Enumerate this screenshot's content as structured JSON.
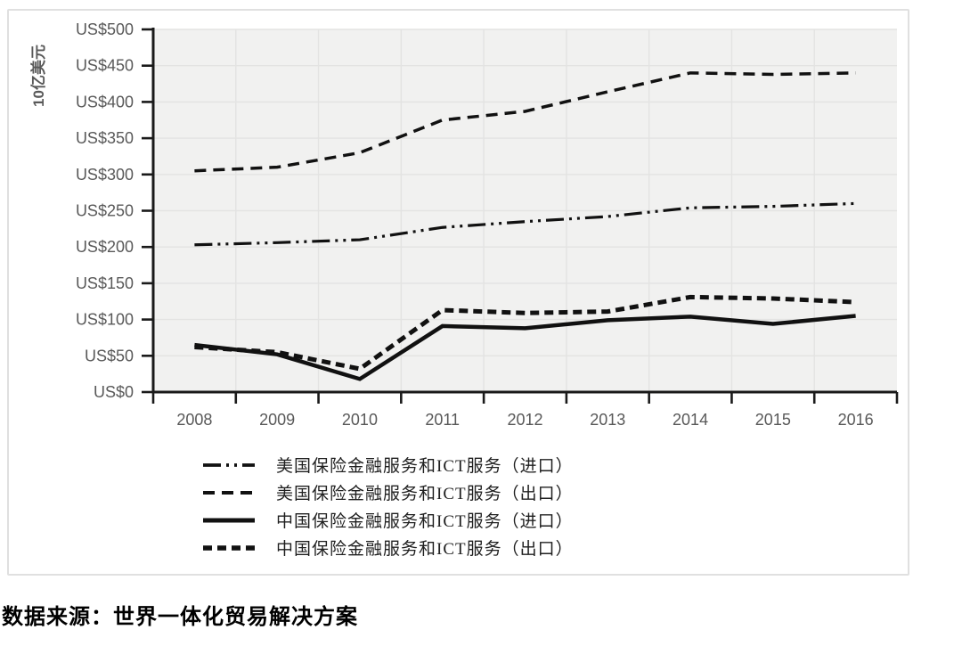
{
  "page": {
    "source_note": "数据来源：世界一体化贸易解决方案"
  },
  "chart_data": {
    "type": "line",
    "title": "",
    "xlabel": "",
    "ylabel": "10亿美元",
    "ylim": [
      0,
      500
    ],
    "y_tick_step": 50,
    "y_tick_labels": [
      "US$0",
      "US$50",
      "US$100",
      "US$150",
      "US$200",
      "US$250",
      "US$300",
      "US$350",
      "US$400",
      "US$450",
      "US$500"
    ],
    "categories": [
      "2008",
      "2009",
      "2010",
      "2011",
      "2012",
      "2013",
      "2014",
      "2015",
      "2016"
    ],
    "series": [
      {
        "name": "美国保险金融服务和ICT服务（进口）",
        "style": "dash-dot-dot",
        "dasharray": "20 6 3 6 3 6",
        "width": 3.2,
        "values": [
          203,
          206,
          210,
          227,
          235,
          242,
          254,
          256,
          260
        ]
      },
      {
        "name": "美国保险金融服务和ICT服务（出口）",
        "style": "dashed",
        "dasharray": "13 8",
        "width": 3.5,
        "values": [
          305,
          310,
          330,
          375,
          387,
          414,
          440,
          438,
          440
        ]
      },
      {
        "name": "中国保险金融服务和ICT服务（进口）",
        "style": "solid",
        "dasharray": "",
        "width": 4.5,
        "values": [
          65,
          52,
          18,
          91,
          88,
          99,
          104,
          94,
          105
        ]
      },
      {
        "name": "中国保险金融服务和ICT服务（出口）",
        "style": "bold-dashed",
        "dasharray": "10 6",
        "width": 5,
        "values": [
          62,
          55,
          32,
          113,
          109,
          111,
          131,
          129,
          124
        ]
      }
    ],
    "legend_position": "bottom-left",
    "grid": true,
    "line_color": "#111111",
    "axis_color": "#1a1a1a",
    "label_color": "#595959",
    "plot_bg": "#f1f1f0",
    "grid_color": "#e3e3e2"
  }
}
